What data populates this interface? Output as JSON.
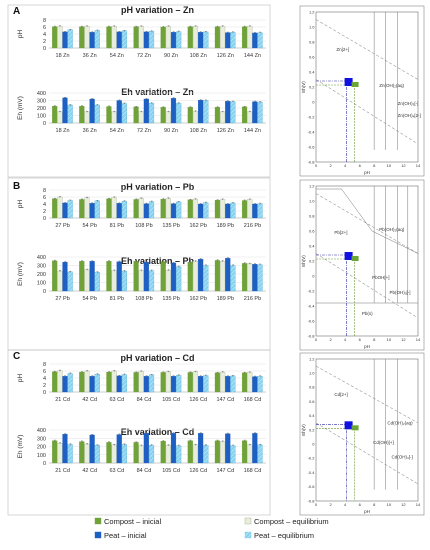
{
  "colors": {
    "compost_initial": "#71a23a",
    "compost_equilibrium": "#e8eddc",
    "peat_initial": "#1e5fc3",
    "peat_equilibrium": "#86d2ef",
    "grid": "#e2e2e2",
    "frame": "#bdbdbd"
  },
  "legend": [
    {
      "label": "Compost – inicial",
      "color": "#71a23a",
      "hatched": false
    },
    {
      "label": "Compost – equilibrium",
      "color": "#e8eddc",
      "hatched": false
    },
    {
      "label": "Peat – inicial",
      "color": "#1e5fc3",
      "hatched": false
    },
    {
      "label": "Peat – equilibrium",
      "color": "#86d2ef",
      "hatched": true
    }
  ],
  "panels": [
    {
      "label": "A",
      "charts": [
        {
          "type": "bar",
          "title": "pH variation – Zn",
          "ylabel": "pH",
          "ylim": [
            0,
            8
          ],
          "yticks": [
            0,
            2,
            4,
            6,
            8
          ],
          "categories": [
            "18 Zn",
            "36 Zn",
            "54 Zn",
            "72 Zn",
            "90 Zn",
            "108 Zn",
            "126 Zn",
            "144 Zn"
          ],
          "series": [
            {
              "name": "Compost – inicial",
              "values": [
                6.1,
                6.1,
                6.1,
                6.1,
                6.0,
                6.1,
                6.1,
                6.1
              ]
            },
            {
              "name": "Compost – equilibrium",
              "values": [
                6.2,
                6.2,
                6.2,
                6.2,
                6.2,
                6.2,
                6.2,
                6.2
              ]
            },
            {
              "name": "Peat – inicial",
              "values": [
                4.6,
                4.5,
                4.6,
                4.6,
                4.5,
                4.5,
                4.4,
                4.3
              ]
            },
            {
              "name": "Peat – equilibrium",
              "values": [
                5.2,
                5.0,
                4.9,
                4.8,
                4.7,
                4.6,
                4.5,
                4.4
              ]
            }
          ]
        },
        {
          "type": "bar",
          "title": "Eh variation – Zn",
          "ylabel": "Eh (mV)",
          "ylim": [
            0,
            400
          ],
          "yticks": [
            0,
            100,
            200,
            300,
            400
          ],
          "categories": [
            "18 Zn",
            "36 Zn",
            "54 Zn",
            "72 Zn",
            "90 Zn",
            "108 Zn",
            "126 Zn",
            "144 Zn"
          ],
          "series": [
            {
              "name": "Compost – inicial",
              "values": [
                225,
                225,
                220,
                215,
                210,
                210,
                210,
                215
              ]
            },
            {
              "name": "Compost – equilibrium",
              "values": [
                150,
                150,
                150,
                150,
                150,
                155,
                150,
                150
              ]
            },
            {
              "name": "Peat – inicial",
              "values": [
                335,
                320,
                300,
                320,
                330,
                305,
                290,
                285
              ]
            },
            {
              "name": "Peat – equilibrium",
              "values": [
                240,
                240,
                260,
                265,
                265,
                300,
                285,
                280
              ]
            }
          ]
        }
      ],
      "pourbaix": {
        "ylabel": "Eh(V)",
        "xlabel": "pH",
        "yticks": [
          "1.2",
          "1.0",
          "0.8",
          "0.6",
          "0.4",
          "0.2",
          "0",
          "-0.2",
          "-0.4",
          "-0.6",
          "-0.8"
        ],
        "xticks": [
          "0",
          "2",
          "4",
          "6",
          "8",
          "10",
          "12",
          "14"
        ],
        "species": [
          "Zn[2+]",
          "Zn(OH)₂(aq)",
          "Zn(OH)₃[-]",
          "Zn(OH)₄[2-]"
        ]
      }
    },
    {
      "label": "B",
      "charts": [
        {
          "type": "bar",
          "title": "pH variation – Pb",
          "ylabel": "pH",
          "ylim": [
            0,
            8
          ],
          "yticks": [
            0,
            2,
            4,
            6,
            8
          ],
          "categories": [
            "27 Pb",
            "54 Pb",
            "81 Pb",
            "108 Pb",
            "135 Pb",
            "162 Pb",
            "189 Pb",
            "216 Pb"
          ],
          "series": [
            {
              "name": "Compost – inicial",
              "values": [
                5.5,
                5.3,
                5.5,
                5.3,
                5.4,
                5.2,
                5.1,
                5.0
              ]
            },
            {
              "name": "Compost – equilibrium",
              "values": [
                6.0,
                5.8,
                5.9,
                5.6,
                5.6,
                5.4,
                5.3,
                5.3
              ]
            },
            {
              "name": "Peat – inicial",
              "values": [
                4.3,
                4.2,
                4.2,
                4.1,
                4.1,
                4.0,
                4.0,
                4.0
              ]
            },
            {
              "name": "Peat – equilibrium",
              "values": [
                5.0,
                4.9,
                4.8,
                4.7,
                4.6,
                4.4,
                4.3,
                4.1
              ]
            }
          ]
        },
        {
          "type": "bar",
          "title": "Eh variation – Pb",
          "ylabel": "Eh (mV)",
          "ylim": [
            0,
            400
          ],
          "yticks": [
            0,
            100,
            200,
            300,
            400
          ],
          "categories": [
            "27 Pb",
            "54 Pb",
            "81 Pb",
            "108 Pb",
            "135 Pb",
            "162 Pb",
            "189 Pb",
            "216 Pb"
          ],
          "series": [
            {
              "name": "Compost – inicial",
              "values": [
                355,
                350,
                350,
                350,
                345,
                340,
                360,
                325
              ]
            },
            {
              "name": "Compost – equilibrium",
              "values": [
                235,
                250,
                240,
                240,
                245,
                350,
                350,
                320
              ]
            },
            {
              "name": "Peat – inicial",
              "values": [
                340,
                350,
                345,
                340,
                330,
                375,
                385,
                315
              ]
            },
            {
              "name": "Peat – equilibrium",
              "values": [
                225,
                220,
                235,
                240,
                285,
                300,
                300,
                310
              ]
            }
          ]
        }
      ],
      "pourbaix": {
        "ylabel": "Eh(V)",
        "xlabel": "pH",
        "yticks": [
          "1.2",
          "1.0",
          "0.8",
          "0.6",
          "0.4",
          "0.2",
          "0",
          "-0.2",
          "-0.4",
          "-0.6",
          "-0.8"
        ],
        "xticks": [
          "0",
          "2",
          "4",
          "6",
          "8",
          "10",
          "12",
          "14"
        ],
        "species": [
          "Pb[2+]",
          "Pb(OH)₂(aq)",
          "PbOH[+]",
          "Pb(OH)₃[-]",
          "Pb(s)"
        ]
      }
    },
    {
      "label": "C",
      "charts": [
        {
          "type": "bar",
          "title": "pH variation – Cd",
          "ylabel": "pH",
          "ylim": [
            0,
            8
          ],
          "yticks": [
            0,
            2,
            4,
            6,
            8
          ],
          "categories": [
            "21 Cd",
            "42 Cd",
            "63 Cd",
            "84 Cd",
            "105 Cd",
            "126 Cd",
            "147 Cd",
            "168 Cd"
          ],
          "series": [
            {
              "name": "Compost – inicial",
              "values": [
                5.8,
                5.7,
                5.7,
                5.6,
                5.6,
                5.6,
                5.5,
                5.5
              ]
            },
            {
              "name": "Compost – equilibrium",
              "values": [
                6.1,
                6.0,
                6.0,
                5.9,
                5.8,
                5.8,
                5.7,
                5.6
              ]
            },
            {
              "name": "Peat – inicial",
              "values": [
                4.5,
                4.5,
                4.6,
                4.5,
                4.5,
                4.5,
                4.5,
                4.4
              ]
            },
            {
              "name": "Peat – equilibrium",
              "values": [
                5.3,
                5.1,
                5.0,
                4.9,
                4.8,
                4.7,
                4.6,
                4.5
              ]
            }
          ]
        },
        {
          "type": "bar",
          "title": "Eh variation – Cd",
          "ylabel": "Eh (mV)",
          "ylim": [
            0,
            400
          ],
          "yticks": [
            0,
            100,
            200,
            300,
            400
          ],
          "categories": [
            "21 Cd",
            "42 Cd",
            "63 Cd",
            "84 Cd",
            "105 Cd",
            "126 Cd",
            "147 Cd",
            "168 Cd"
          ],
          "series": [
            {
              "name": "Compost – inicial",
              "values": [
                270,
                260,
                250,
                250,
                265,
                270,
                270,
                270
              ]
            },
            {
              "name": "Compost – equilibrium",
              "values": [
                240,
                230,
                220,
                210,
                215,
                220,
                260,
                220
              ]
            },
            {
              "name": "Peat – inicial",
              "values": [
                350,
                340,
                345,
                360,
                360,
                360,
                355,
                360
              ]
            },
            {
              "name": "Peat – equilibrium",
              "values": [
                225,
                215,
                225,
                215,
                210,
                215,
                210,
                220
              ]
            }
          ]
        }
      ],
      "pourbaix": {
        "ylabel": "Eh(V)",
        "xlabel": "pH",
        "yticks": [
          "1.2",
          "1.0",
          "0.8",
          "0.6",
          "0.4",
          "0.2",
          "0",
          "-0.2",
          "-0.4",
          "-0.6",
          "-0.8"
        ],
        "xticks": [
          "0",
          "2",
          "4",
          "6",
          "8",
          "10",
          "12",
          "14"
        ],
        "species": [
          "Cd[2+]",
          "Cd(OH)₂(aq)",
          "Cd(OH)[+]",
          "Cd(OH)₃[-]"
        ]
      }
    }
  ]
}
